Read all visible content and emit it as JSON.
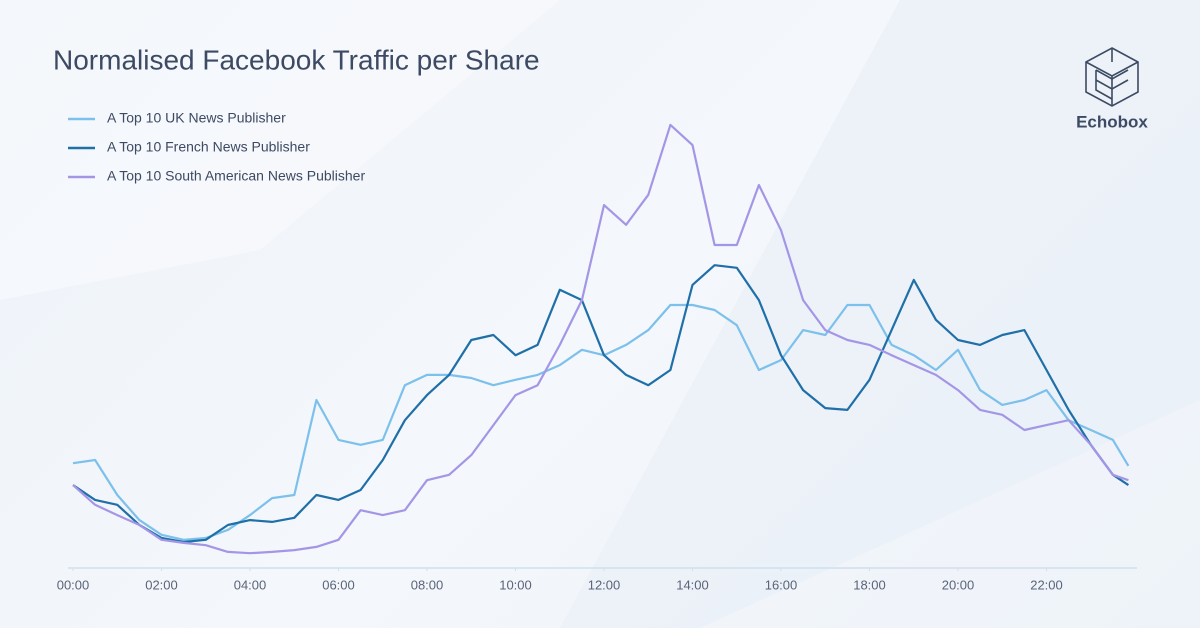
{
  "brand": "Echobox",
  "chart_data": {
    "type": "line",
    "title": "Normalised Facebook Traffic per Share",
    "x": [
      0,
      0.5,
      1,
      1.5,
      2,
      2.5,
      3,
      3.5,
      4,
      4.5,
      5,
      5.5,
      6,
      6.5,
      7,
      7.5,
      8,
      8.5,
      9,
      9.5,
      10,
      10.5,
      11,
      11.5,
      12,
      12.5,
      13,
      13.5,
      14,
      14.5,
      15,
      15.5,
      16,
      16.5,
      17,
      17.5,
      18,
      18.5,
      19,
      19.5,
      20,
      20.5,
      21,
      21.5,
      22,
      22.5,
      23,
      23.5,
      23.85
    ],
    "xlim": [
      0,
      24
    ],
    "xticks": [
      {
        "value": 0,
        "label": "00:00"
      },
      {
        "value": 2,
        "label": "02:00"
      },
      {
        "value": 4,
        "label": "04:00"
      },
      {
        "value": 6,
        "label": "06:00"
      },
      {
        "value": 8,
        "label": "08:00"
      },
      {
        "value": 10,
        "label": "10:00"
      },
      {
        "value": 12,
        "label": "12:00"
      },
      {
        "value": 14,
        "label": "14:00"
      },
      {
        "value": 16,
        "label": "16:00"
      },
      {
        "value": 18,
        "label": "18:00"
      },
      {
        "value": 20,
        "label": "20:00"
      },
      {
        "value": 22,
        "label": "22:00"
      }
    ],
    "ylim": [
      0,
      100
    ],
    "grid": false,
    "legend": "top-left",
    "series": [
      {
        "name": "A Top 10 UK News Publisher",
        "color": "#7cc0ec",
        "values": [
          23.4,
          24.1,
          16.3,
          10.7,
          7.4,
          6.3,
          6.7,
          8.5,
          11.8,
          15.6,
          16.3,
          37.5,
          28.6,
          27.5,
          28.6,
          40.8,
          43.1,
          43.1,
          42.4,
          40.8,
          42.0,
          43.1,
          45.3,
          48.7,
          47.5,
          49.8,
          53.1,
          58.7,
          58.7,
          57.6,
          54.2,
          44.2,
          46.4,
          53.1,
          52.0,
          58.7,
          58.7,
          49.8,
          47.5,
          44.2,
          48.7,
          39.7,
          36.4,
          37.5,
          39.7,
          33.0,
          30.8,
          28.6,
          22.8
        ]
      },
      {
        "name": "A Top 10 French News Publisher",
        "color": "#1f6fa8",
        "values": [
          18.5,
          15.2,
          14.1,
          9.6,
          6.7,
          5.8,
          6.3,
          9.6,
          10.7,
          10.3,
          11.2,
          16.3,
          15.2,
          17.4,
          24.1,
          33.0,
          38.6,
          43.1,
          50.9,
          52.0,
          47.5,
          49.8,
          62.1,
          59.8,
          47.5,
          43.1,
          40.8,
          44.2,
          63.2,
          67.6,
          67.0,
          59.8,
          47.5,
          39.7,
          35.7,
          35.3,
          42.0,
          53.1,
          64.3,
          55.4,
          50.9,
          49.8,
          52.0,
          53.1,
          44.2,
          35.3,
          27.5,
          20.8,
          18.5
        ]
      },
      {
        "name": "A Top 10 South American News Publisher",
        "color": "#a496e6",
        "values": [
          18.5,
          14.1,
          11.8,
          9.6,
          6.3,
          5.6,
          5.1,
          3.6,
          3.3,
          3.6,
          4.0,
          4.7,
          6.3,
          12.9,
          11.8,
          12.9,
          19.6,
          20.8,
          25.2,
          31.9,
          38.6,
          40.8,
          49.8,
          59.8,
          81.0,
          76.6,
          83.3,
          98.9,
          94.4,
          72.1,
          72.1,
          85.5,
          75.4,
          59.8,
          53.1,
          50.9,
          49.8,
          47.5,
          45.3,
          43.1,
          39.7,
          35.3,
          34.2,
          30.8,
          31.9,
          33.0,
          27.5,
          20.8,
          19.6
        ]
      }
    ]
  }
}
